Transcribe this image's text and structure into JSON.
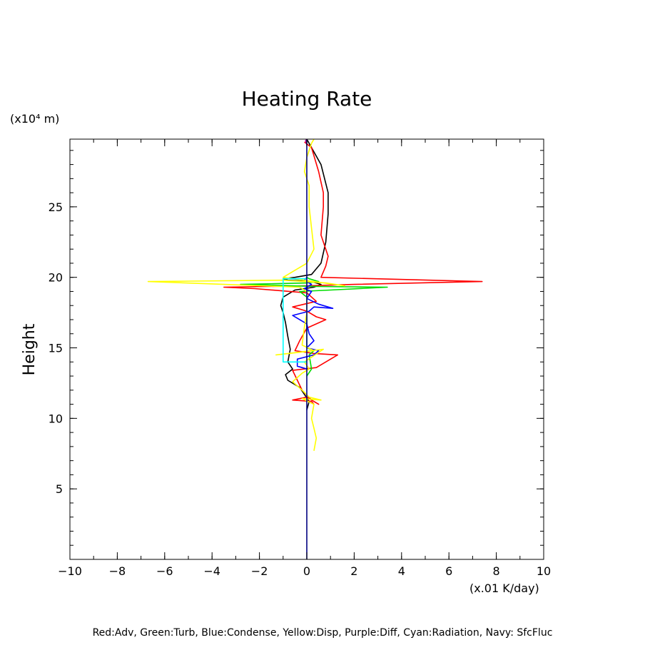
{
  "chart_data": {
    "type": "line",
    "title": "Heating Rate",
    "xlabel": "(x.01 K/day)",
    "ylabel": "Height",
    "yunit": "(x10⁴ m)",
    "xlim": [
      -10,
      10
    ],
    "ylim": [
      0,
      29.8
    ],
    "x_ticks": [
      -10,
      -8,
      -6,
      -4,
      -2,
      0,
      2,
      4,
      6,
      8,
      10
    ],
    "x_tick_labels": [
      "−10",
      "−8",
      "−6",
      "−4",
      "−2",
      "0",
      "2",
      "4",
      "6",
      "8",
      "10"
    ],
    "y_ticks": [
      5,
      10,
      15,
      20,
      25
    ],
    "y_tick_labels": [
      "5",
      "10",
      "15",
      "20",
      "25"
    ],
    "grid": false,
    "legend_text": "Red:Adv, Green:Turb, Blue:Condense, Yellow:Disp, Purple:Diff, Cyan:Radiation, Navy: SfcFluc",
    "series": [
      {
        "color": "#000000",
        "points": [
          [
            0,
            10.6
          ],
          [
            0.1,
            11.2
          ],
          [
            -0.3,
            12.2
          ],
          [
            -0.8,
            12.7
          ],
          [
            -0.9,
            13.1
          ],
          [
            -0.6,
            13.5
          ],
          [
            -0.8,
            14.0
          ],
          [
            -0.7,
            14.9
          ],
          [
            -0.8,
            15.8
          ],
          [
            -0.9,
            16.8
          ],
          [
            -1.0,
            17.5
          ],
          [
            -1.1,
            18.0
          ],
          [
            -1.0,
            18.6
          ],
          [
            -0.5,
            19.1
          ],
          [
            0.3,
            19.3
          ],
          [
            0.6,
            19.5
          ],
          [
            0.2,
            19.7
          ],
          [
            -0.8,
            19.8
          ],
          [
            -1.0,
            19.9
          ],
          [
            -0.5,
            20.0
          ],
          [
            0.2,
            20.2
          ],
          [
            0.6,
            21.0
          ],
          [
            0.8,
            22.5
          ],
          [
            0.9,
            24.5
          ],
          [
            0.9,
            26.0
          ],
          [
            0.6,
            28.0
          ],
          [
            0.2,
            29.2
          ],
          [
            0,
            29.8
          ]
        ]
      },
      {
        "color": "#ff0000",
        "points": [
          [
            0.3,
            11.0
          ],
          [
            0.2,
            11.2
          ],
          [
            -0.6,
            11.3
          ],
          [
            0,
            11.5
          ],
          [
            0.5,
            11.0
          ],
          [
            0.2,
            11.3
          ],
          [
            -0.2,
            12.0
          ],
          [
            -0.6,
            13.4
          ],
          [
            0.4,
            13.6
          ],
          [
            1.3,
            14.5
          ],
          [
            0.3,
            14.6
          ],
          [
            -0.5,
            14.8
          ],
          [
            -0.3,
            15.5
          ],
          [
            0,
            16.4
          ],
          [
            0.8,
            17.0
          ],
          [
            0.4,
            17.2
          ],
          [
            0,
            17.6
          ],
          [
            -0.6,
            17.9
          ],
          [
            0.4,
            18.3
          ],
          [
            0,
            18.9
          ],
          [
            -2.2,
            19.2
          ],
          [
            -3.5,
            19.3
          ],
          [
            0,
            19.4
          ],
          [
            2.0,
            19.5
          ],
          [
            7.4,
            19.7
          ],
          [
            0.6,
            20.0
          ],
          [
            0.8,
            20.8
          ],
          [
            0.9,
            21.5
          ],
          [
            0.6,
            23.0
          ],
          [
            0.7,
            25.0
          ],
          [
            0.7,
            26.0
          ],
          [
            0.5,
            27.5
          ],
          [
            0.2,
            29.2
          ],
          [
            -0.1,
            29.6
          ]
        ]
      },
      {
        "color": "#00dd00",
        "points": [
          [
            0,
            13.0
          ],
          [
            0.2,
            13.5
          ],
          [
            0.1,
            14.5
          ],
          [
            0.3,
            14.8
          ],
          [
            0,
            15.0
          ],
          [
            0,
            18.6
          ],
          [
            -0.3,
            19.0
          ],
          [
            1.0,
            19.1
          ],
          [
            3.4,
            19.3
          ],
          [
            0.4,
            19.35
          ],
          [
            -2.8,
            19.5
          ],
          [
            0,
            19.6
          ],
          [
            0.5,
            19.7
          ],
          [
            0.1,
            19.9
          ],
          [
            0,
            20.0
          ]
        ]
      },
      {
        "color": "#0000ff",
        "points": [
          [
            0,
            13.5
          ],
          [
            -0.4,
            13.7
          ],
          [
            -0.4,
            14.2
          ],
          [
            0.3,
            14.5
          ],
          [
            0.5,
            14.8
          ],
          [
            0,
            15.0
          ],
          [
            0.3,
            15.5
          ],
          [
            0.1,
            16.0
          ],
          [
            0,
            16.7
          ],
          [
            -0.6,
            17.3
          ],
          [
            0.1,
            17.6
          ],
          [
            0.3,
            17.9
          ],
          [
            1.1,
            17.8
          ],
          [
            0.5,
            18.1
          ],
          [
            0,
            18.5
          ],
          [
            0.2,
            19.0
          ],
          [
            -0.1,
            19.2
          ],
          [
            0.2,
            19.5
          ],
          [
            -0.1,
            19.8
          ],
          [
            0,
            20.0
          ]
        ]
      },
      {
        "color": "#ffff00",
        "points": [
          [
            0.3,
            7.7
          ],
          [
            0.4,
            8.6
          ],
          [
            0.3,
            9.3
          ],
          [
            0.2,
            10.0
          ],
          [
            0.3,
            11.0
          ],
          [
            -0.2,
            11.4
          ],
          [
            0.6,
            11.3
          ],
          [
            0.1,
            11.5
          ],
          [
            -0.2,
            12.0
          ],
          [
            -0.6,
            12.6
          ],
          [
            -0.2,
            13.2
          ],
          [
            0.1,
            13.5
          ],
          [
            -0.1,
            14.0
          ],
          [
            0.7,
            14.9
          ],
          [
            -1.3,
            14.5
          ],
          [
            0.3,
            14.8
          ],
          [
            -0.2,
            15.2
          ],
          [
            -0.1,
            16.5
          ],
          [
            0,
            17.5
          ],
          [
            0,
            19.0
          ],
          [
            -0.3,
            19.3
          ],
          [
            -6.7,
            19.7
          ],
          [
            -1.0,
            19.8
          ],
          [
            0.8,
            19.6
          ],
          [
            1.6,
            19.4
          ],
          [
            -1.0,
            20.0
          ],
          [
            0,
            21.0
          ],
          [
            0.3,
            22.0
          ],
          [
            0.2,
            23.5
          ],
          [
            0.1,
            25.0
          ],
          [
            0.1,
            26.5
          ],
          [
            -0.1,
            27.5
          ],
          [
            0,
            28.5
          ],
          [
            0.2,
            29.5
          ],
          [
            0.3,
            29.8
          ]
        ]
      },
      {
        "color": "#aa00aa",
        "points": [
          [
            0,
            29.4
          ],
          [
            -0.05,
            29.7
          ],
          [
            0,
            29.8
          ]
        ]
      },
      {
        "color": "#00ffff",
        "points": [
          [
            0,
            14.0
          ],
          [
            -1.0,
            14.0
          ],
          [
            -1.0,
            19.9
          ],
          [
            0,
            19.9
          ]
        ]
      },
      {
        "color": "#000080",
        "points": [
          [
            0,
            0
          ],
          [
            0,
            29.8
          ]
        ]
      }
    ]
  }
}
